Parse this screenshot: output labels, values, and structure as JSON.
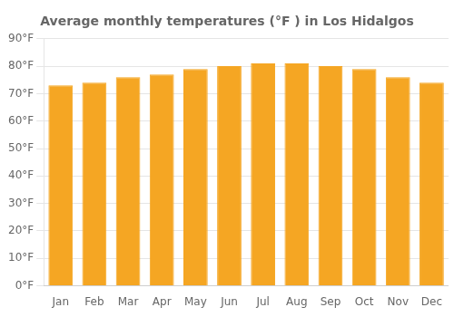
{
  "chart_data": {
    "type": "bar",
    "title": "Average monthly temperatures (°F ) in Los Hidalgos",
    "categories": [
      "Jan",
      "Feb",
      "Mar",
      "Apr",
      "May",
      "Jun",
      "Jul",
      "Aug",
      "Sep",
      "Oct",
      "Nov",
      "Dec"
    ],
    "values": [
      73,
      74,
      76,
      77,
      79,
      80,
      81,
      81,
      80,
      79,
      76,
      74
    ],
    "color": "#F5A623",
    "ylim": [
      0,
      90
    ],
    "yticks": [
      {
        "value": 0,
        "label": "0°F"
      },
      {
        "value": 10,
        "label": "10°F"
      },
      {
        "value": 20,
        "label": "20°F"
      },
      {
        "value": 30,
        "label": "30°F"
      },
      {
        "value": 40,
        "label": "40°F"
      },
      {
        "value": 50,
        "label": "50°F"
      },
      {
        "value": 60,
        "label": "60°F"
      },
      {
        "value": 70,
        "label": "70°F"
      },
      {
        "value": 80,
        "label": "80°F"
      },
      {
        "value": 90,
        "label": "90°F"
      }
    ],
    "grid": true
  }
}
